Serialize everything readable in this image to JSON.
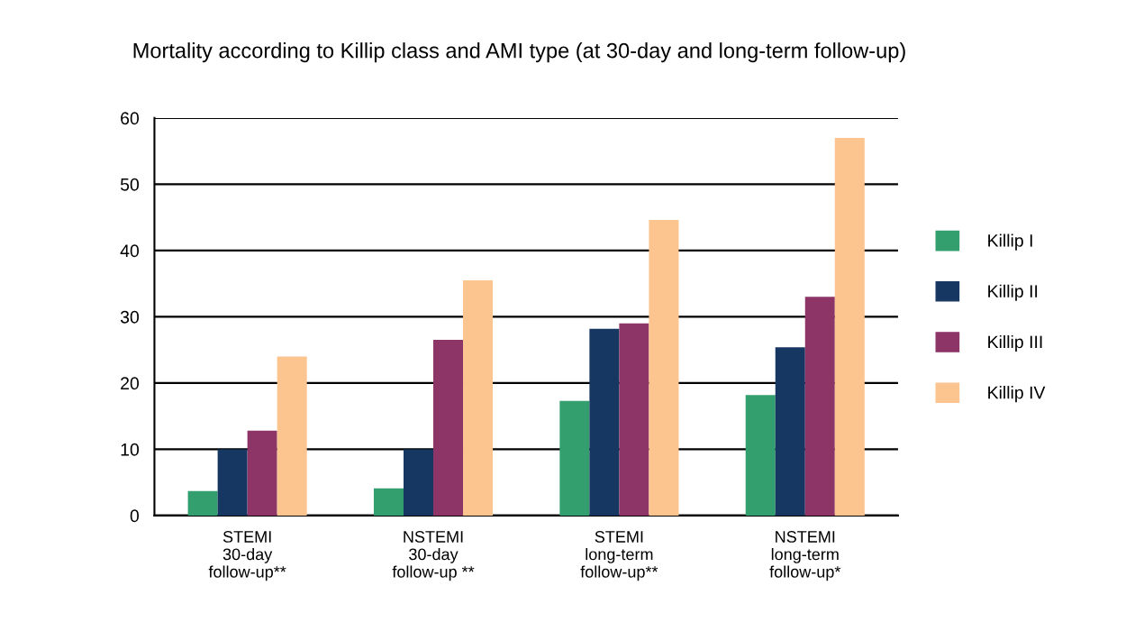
{
  "chart_data": {
    "type": "bar",
    "title": "Mortality according to Killip class and AMI type (at 30-day and long-term follow-up)",
    "categories": [
      "STEMI\n30-day\nfollow-up**",
      "NSTEMI\n30-day\nfollow-up **",
      "STEMI\nlong-term\nfollow-up**",
      "NSTEMI\nlong-term\nfollow-up*"
    ],
    "series": [
      {
        "name": "Killip I",
        "color": "#339e6e",
        "values": [
          3.7,
          4.1,
          17.3,
          18.2
        ]
      },
      {
        "name": "Killip II",
        "color": "#173763",
        "values": [
          10,
          10,
          28.2,
          25.4
        ]
      },
      {
        "name": "Killip III",
        "color": "#8d3566",
        "values": [
          12.8,
          26.5,
          29,
          33
        ]
      },
      {
        "name": "Killip IV",
        "color": "#fcc48e",
        "values": [
          24,
          35.5,
          44.6,
          57
        ]
      }
    ],
    "ylim": [
      0,
      60
    ],
    "yticks": [
      0,
      10,
      20,
      30,
      40,
      50,
      60
    ],
    "grid": "y",
    "legend": "right"
  }
}
